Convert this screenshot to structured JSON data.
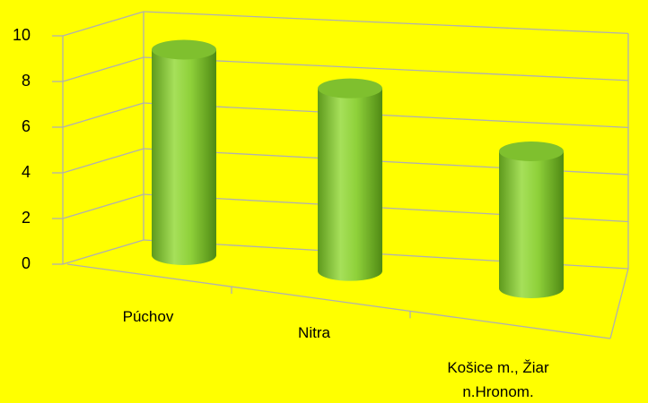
{
  "chart_data": {
    "type": "bar",
    "categories": [
      "Púchov",
      "Nitra",
      "Košice m., Žiar n.Hronom."
    ],
    "values": [
      9,
      8,
      6
    ],
    "color": "#8fd13a",
    "ylim": [
      0,
      10
    ],
    "yticks": [
      0,
      2,
      4,
      6,
      8,
      10
    ],
    "grid": true
  }
}
